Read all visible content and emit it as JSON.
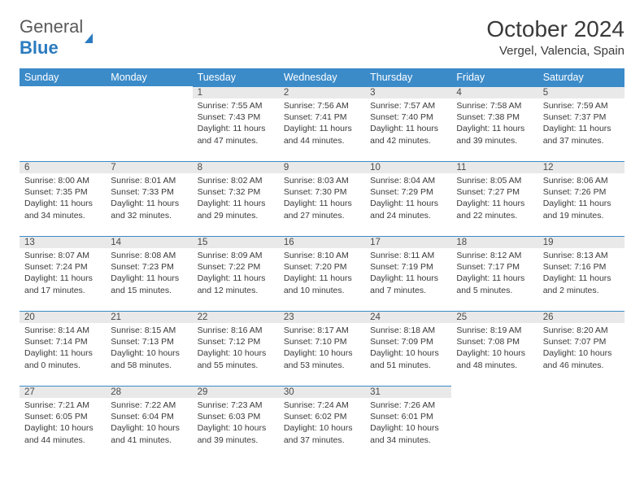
{
  "logo": {
    "text1": "General",
    "text2": "Blue"
  },
  "title": "October 2024",
  "location": "Vergel, Valencia, Spain",
  "colors": {
    "header_bg": "#3b8bc9",
    "header_text": "#ffffff",
    "daynum_bg": "#e9e9e9",
    "border": "#3b8bc9",
    "body_text": "#3a3a3a"
  },
  "weekdays": [
    "Sunday",
    "Monday",
    "Tuesday",
    "Wednesday",
    "Thursday",
    "Friday",
    "Saturday"
  ],
  "rows": [
    [
      null,
      null,
      {
        "n": "1",
        "sr": "Sunrise: 7:55 AM",
        "ss": "Sunset: 7:43 PM",
        "d1": "Daylight: 11 hours",
        "d2": "and 47 minutes."
      },
      {
        "n": "2",
        "sr": "Sunrise: 7:56 AM",
        "ss": "Sunset: 7:41 PM",
        "d1": "Daylight: 11 hours",
        "d2": "and 44 minutes."
      },
      {
        "n": "3",
        "sr": "Sunrise: 7:57 AM",
        "ss": "Sunset: 7:40 PM",
        "d1": "Daylight: 11 hours",
        "d2": "and 42 minutes."
      },
      {
        "n": "4",
        "sr": "Sunrise: 7:58 AM",
        "ss": "Sunset: 7:38 PM",
        "d1": "Daylight: 11 hours",
        "d2": "and 39 minutes."
      },
      {
        "n": "5",
        "sr": "Sunrise: 7:59 AM",
        "ss": "Sunset: 7:37 PM",
        "d1": "Daylight: 11 hours",
        "d2": "and 37 minutes."
      }
    ],
    [
      {
        "n": "6",
        "sr": "Sunrise: 8:00 AM",
        "ss": "Sunset: 7:35 PM",
        "d1": "Daylight: 11 hours",
        "d2": "and 34 minutes."
      },
      {
        "n": "7",
        "sr": "Sunrise: 8:01 AM",
        "ss": "Sunset: 7:33 PM",
        "d1": "Daylight: 11 hours",
        "d2": "and 32 minutes."
      },
      {
        "n": "8",
        "sr": "Sunrise: 8:02 AM",
        "ss": "Sunset: 7:32 PM",
        "d1": "Daylight: 11 hours",
        "d2": "and 29 minutes."
      },
      {
        "n": "9",
        "sr": "Sunrise: 8:03 AM",
        "ss": "Sunset: 7:30 PM",
        "d1": "Daylight: 11 hours",
        "d2": "and 27 minutes."
      },
      {
        "n": "10",
        "sr": "Sunrise: 8:04 AM",
        "ss": "Sunset: 7:29 PM",
        "d1": "Daylight: 11 hours",
        "d2": "and 24 minutes."
      },
      {
        "n": "11",
        "sr": "Sunrise: 8:05 AM",
        "ss": "Sunset: 7:27 PM",
        "d1": "Daylight: 11 hours",
        "d2": "and 22 minutes."
      },
      {
        "n": "12",
        "sr": "Sunrise: 8:06 AM",
        "ss": "Sunset: 7:26 PM",
        "d1": "Daylight: 11 hours",
        "d2": "and 19 minutes."
      }
    ],
    [
      {
        "n": "13",
        "sr": "Sunrise: 8:07 AM",
        "ss": "Sunset: 7:24 PM",
        "d1": "Daylight: 11 hours",
        "d2": "and 17 minutes."
      },
      {
        "n": "14",
        "sr": "Sunrise: 8:08 AM",
        "ss": "Sunset: 7:23 PM",
        "d1": "Daylight: 11 hours",
        "d2": "and 15 minutes."
      },
      {
        "n": "15",
        "sr": "Sunrise: 8:09 AM",
        "ss": "Sunset: 7:22 PM",
        "d1": "Daylight: 11 hours",
        "d2": "and 12 minutes."
      },
      {
        "n": "16",
        "sr": "Sunrise: 8:10 AM",
        "ss": "Sunset: 7:20 PM",
        "d1": "Daylight: 11 hours",
        "d2": "and 10 minutes."
      },
      {
        "n": "17",
        "sr": "Sunrise: 8:11 AM",
        "ss": "Sunset: 7:19 PM",
        "d1": "Daylight: 11 hours",
        "d2": "and 7 minutes."
      },
      {
        "n": "18",
        "sr": "Sunrise: 8:12 AM",
        "ss": "Sunset: 7:17 PM",
        "d1": "Daylight: 11 hours",
        "d2": "and 5 minutes."
      },
      {
        "n": "19",
        "sr": "Sunrise: 8:13 AM",
        "ss": "Sunset: 7:16 PM",
        "d1": "Daylight: 11 hours",
        "d2": "and 2 minutes."
      }
    ],
    [
      {
        "n": "20",
        "sr": "Sunrise: 8:14 AM",
        "ss": "Sunset: 7:14 PM",
        "d1": "Daylight: 11 hours",
        "d2": "and 0 minutes."
      },
      {
        "n": "21",
        "sr": "Sunrise: 8:15 AM",
        "ss": "Sunset: 7:13 PM",
        "d1": "Daylight: 10 hours",
        "d2": "and 58 minutes."
      },
      {
        "n": "22",
        "sr": "Sunrise: 8:16 AM",
        "ss": "Sunset: 7:12 PM",
        "d1": "Daylight: 10 hours",
        "d2": "and 55 minutes."
      },
      {
        "n": "23",
        "sr": "Sunrise: 8:17 AM",
        "ss": "Sunset: 7:10 PM",
        "d1": "Daylight: 10 hours",
        "d2": "and 53 minutes."
      },
      {
        "n": "24",
        "sr": "Sunrise: 8:18 AM",
        "ss": "Sunset: 7:09 PM",
        "d1": "Daylight: 10 hours",
        "d2": "and 51 minutes."
      },
      {
        "n": "25",
        "sr": "Sunrise: 8:19 AM",
        "ss": "Sunset: 7:08 PM",
        "d1": "Daylight: 10 hours",
        "d2": "and 48 minutes."
      },
      {
        "n": "26",
        "sr": "Sunrise: 8:20 AM",
        "ss": "Sunset: 7:07 PM",
        "d1": "Daylight: 10 hours",
        "d2": "and 46 minutes."
      }
    ],
    [
      {
        "n": "27",
        "sr": "Sunrise: 7:21 AM",
        "ss": "Sunset: 6:05 PM",
        "d1": "Daylight: 10 hours",
        "d2": "and 44 minutes."
      },
      {
        "n": "28",
        "sr": "Sunrise: 7:22 AM",
        "ss": "Sunset: 6:04 PM",
        "d1": "Daylight: 10 hours",
        "d2": "and 41 minutes."
      },
      {
        "n": "29",
        "sr": "Sunrise: 7:23 AM",
        "ss": "Sunset: 6:03 PM",
        "d1": "Daylight: 10 hours",
        "d2": "and 39 minutes."
      },
      {
        "n": "30",
        "sr": "Sunrise: 7:24 AM",
        "ss": "Sunset: 6:02 PM",
        "d1": "Daylight: 10 hours",
        "d2": "and 37 minutes."
      },
      {
        "n": "31",
        "sr": "Sunrise: 7:26 AM",
        "ss": "Sunset: 6:01 PM",
        "d1": "Daylight: 10 hours",
        "d2": "and 34 minutes."
      },
      null,
      null
    ]
  ]
}
